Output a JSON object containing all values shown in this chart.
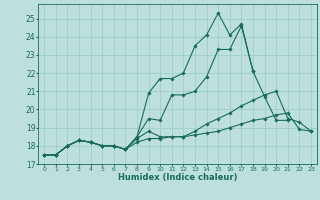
{
  "xlabel": "Humidex (Indice chaleur)",
  "xlim": [
    -0.5,
    23.5
  ],
  "ylim": [
    17,
    25.8
  ],
  "yticks": [
    17,
    18,
    19,
    20,
    21,
    22,
    23,
    24,
    25
  ],
  "xticks": [
    0,
    1,
    2,
    3,
    4,
    5,
    6,
    7,
    8,
    9,
    10,
    11,
    12,
    13,
    14,
    15,
    16,
    17,
    18,
    19,
    20,
    21,
    22,
    23
  ],
  "background_color": "#bde0dc",
  "grid_color": "#9ecfca",
  "line_color": "#1a6b5a",
  "curves": [
    [
      17.5,
      17.5,
      18.0,
      18.3,
      18.2,
      18.0,
      18.0,
      17.8,
      18.5,
      20.9,
      21.7,
      21.7,
      22.0,
      23.5,
      24.1,
      25.3,
      24.1,
      24.7,
      22.1,
      null,
      null,
      null,
      null,
      null
    ],
    [
      17.5,
      17.5,
      18.0,
      18.3,
      18.2,
      18.0,
      18.0,
      17.8,
      18.5,
      19.5,
      19.4,
      20.8,
      20.8,
      21.0,
      21.8,
      23.3,
      23.3,
      24.6,
      22.1,
      20.7,
      19.4,
      19.4,
      null,
      null
    ],
    [
      17.5,
      17.5,
      18.0,
      18.3,
      18.2,
      18.0,
      18.0,
      17.8,
      18.4,
      18.8,
      18.5,
      18.5,
      18.5,
      18.8,
      19.2,
      19.5,
      19.8,
      20.2,
      20.5,
      20.8,
      21.0,
      19.5,
      19.3,
      18.8
    ],
    [
      17.5,
      17.5,
      18.0,
      18.3,
      18.2,
      18.0,
      18.0,
      17.8,
      18.2,
      18.4,
      18.4,
      18.5,
      18.5,
      18.6,
      18.7,
      18.8,
      19.0,
      19.2,
      19.4,
      19.5,
      19.7,
      19.8,
      18.9,
      18.8
    ]
  ]
}
